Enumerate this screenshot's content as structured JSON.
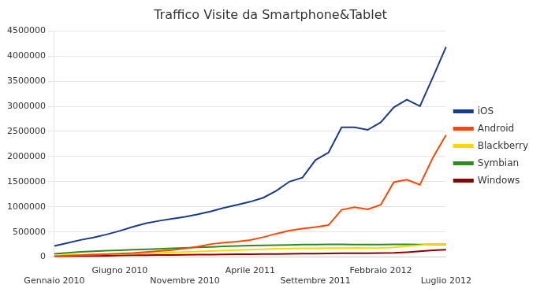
{
  "chart_data": {
    "type": "line",
    "title": "Traffico Visite da Smartphone&Tablet",
    "categories": [
      "Gennaio 2010",
      null,
      null,
      null,
      null,
      "Giugno 2010",
      null,
      null,
      null,
      null,
      "Novembre 2010",
      null,
      null,
      null,
      null,
      "Aprile 2011",
      null,
      null,
      null,
      null,
      "Settembre 2011",
      null,
      null,
      null,
      null,
      "Febbraio 2012",
      null,
      null,
      null,
      null,
      "Luglio 2012"
    ],
    "series": [
      {
        "name": "iOS",
        "color": "#1B3A8C",
        "values": [
          220000,
          280000,
          340000,
          390000,
          450000,
          520000,
          600000,
          670000,
          720000,
          760000,
          800000,
          850000,
          910000,
          980000,
          1040000,
          1100000,
          1180000,
          1320000,
          1500000,
          1580000,
          1930000,
          2080000,
          2580000,
          2580000,
          2530000,
          2680000,
          2980000,
          3130000,
          3000000,
          3580000,
          4180000
        ]
      },
      {
        "name": "Android",
        "color": "#FF4500",
        "values": [
          18000,
          28000,
          38000,
          48000,
          58000,
          68000,
          80000,
          98000,
          118000,
          138000,
          168000,
          208000,
          258000,
          288000,
          308000,
          338000,
          395000,
          465000,
          525000,
          565000,
          595000,
          635000,
          940000,
          990000,
          950000,
          1040000,
          1490000,
          1540000,
          1440000,
          1980000,
          2430000
        ]
      },
      {
        "name": "Blackberry",
        "color": "#FFD700",
        "values": [
          30000,
          40000,
          50000,
          55000,
          60000,
          65000,
          70000,
          75000,
          80000,
          90000,
          100000,
          110000,
          120000,
          130000,
          140000,
          148000,
          155000,
          165000,
          170000,
          175000,
          175000,
          178000,
          178000,
          182000,
          178000,
          182000,
          192000,
          215000,
          238000,
          255000,
          255000
        ]
      },
      {
        "name": "Symbian",
        "color": "#2E8B22",
        "values": [
          65000,
          85000,
          105000,
          115000,
          125000,
          135000,
          145000,
          155000,
          163000,
          172000,
          182000,
          192000,
          202000,
          212000,
          222000,
          227000,
          232000,
          237000,
          242000,
          247000,
          247000,
          252000,
          252000,
          250000,
          247000,
          250000,
          252000,
          254000,
          250000,
          252000,
          252000
        ]
      },
      {
        "name": "Windows",
        "color": "#8B0000",
        "values": [
          8000,
          13000,
          18000,
          22000,
          27000,
          32000,
          35000,
          37000,
          39000,
          42000,
          45000,
          47000,
          49000,
          52000,
          55000,
          57000,
          59000,
          62000,
          65000,
          67000,
          69000,
          72000,
          75000,
          77000,
          77000,
          79000,
          82000,
          97000,
          115000,
          135000,
          145000
        ]
      }
    ],
    "ylim": [
      0,
      4500000
    ],
    "yticks": [
      0,
      500000,
      1000000,
      1500000,
      2000000,
      2500000,
      3000000,
      3500000,
      4000000,
      4500000
    ],
    "grid": "y",
    "legend": "right"
  }
}
